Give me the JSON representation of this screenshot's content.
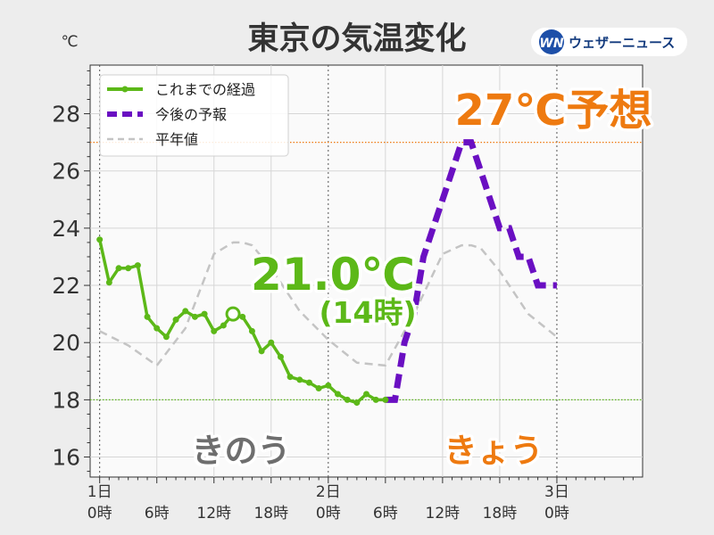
{
  "title": "東京の気温変化",
  "unit_label": "℃",
  "logo": {
    "text": "ウェザーニュース",
    "mark": "WN"
  },
  "legend": {
    "observed": "これまでの経過",
    "forecast": "今後の予報",
    "normal": "平年値"
  },
  "annotations": {
    "current_value": "21.0℃",
    "current_time": "(14時)",
    "forecast_high": "27℃予想",
    "yesterday": "きのう",
    "today": "きょう"
  },
  "colors": {
    "observed": "#5cb818",
    "forecast": "#6a0fc2",
    "normal": "#c4c4c4",
    "ref_high": "#ee7a10",
    "ref_low": "#5cb818",
    "background": "#ededed",
    "plot_bg": "#fafafa"
  },
  "chart_data": {
    "type": "line",
    "title": "東京の気温変化",
    "ylabel": "℃",
    "xlabel": "",
    "ylim": [
      15.3,
      29.7
    ],
    "xlim": [
      -1,
      57
    ],
    "y_ticks": [
      16,
      18,
      20,
      22,
      24,
      26,
      28
    ],
    "x_ticks": [
      {
        "x": 0,
        "label": "1日\n0時"
      },
      {
        "x": 6,
        "label": "6時"
      },
      {
        "x": 12,
        "label": "12時"
      },
      {
        "x": 18,
        "label": "18時"
      },
      {
        "x": 24,
        "label": "2日\n0時"
      },
      {
        "x": 30,
        "label": "6時"
      },
      {
        "x": 36,
        "label": "12時"
      },
      {
        "x": 42,
        "label": "18時"
      },
      {
        "x": 48,
        "label": "3日\n0時"
      }
    ],
    "grid": true,
    "legend_position": "top-left",
    "reference_lines": [
      {
        "y": 27,
        "color": "orange",
        "style": "dotted"
      },
      {
        "y": 18,
        "color": "green",
        "style": "dotted"
      }
    ],
    "series": [
      {
        "name": "これまでの経過",
        "style": "solid-markers",
        "x": [
          0,
          1,
          2,
          3,
          4,
          5,
          6,
          7,
          8,
          9,
          10,
          11,
          12,
          13,
          14,
          15,
          16,
          17,
          18,
          19,
          20,
          21,
          22,
          23,
          24,
          25,
          26,
          27,
          28,
          29,
          30
        ],
        "y": [
          23.6,
          22.1,
          22.6,
          22.6,
          22.7,
          20.9,
          20.5,
          20.2,
          20.8,
          21.1,
          20.9,
          21.0,
          20.4,
          20.6,
          21.0,
          20.9,
          20.4,
          19.7,
          20.0,
          19.5,
          18.8,
          18.7,
          18.6,
          18.4,
          18.5,
          18.2,
          18.0,
          17.9,
          18.2,
          18.0,
          18.0
        ]
      },
      {
        "name": "今後の予報",
        "style": "dashed",
        "x": [
          30,
          31,
          32,
          33,
          34,
          35,
          36,
          37,
          38,
          39,
          40,
          41,
          42,
          43,
          44,
          45,
          46,
          47,
          48
        ],
        "y": [
          18.0,
          18.0,
          20.0,
          21.0,
          23.0,
          24.0,
          25.0,
          26.0,
          27.0,
          27.0,
          26.0,
          25.0,
          24.0,
          24.0,
          23.0,
          23.0,
          22.0,
          22.0,
          22.0
        ]
      },
      {
        "name": "平年値",
        "style": "dashed",
        "x": [
          0,
          3,
          6,
          9,
          12,
          14,
          15,
          16,
          18,
          21,
          24,
          27,
          30,
          33,
          36,
          38,
          39,
          40,
          42,
          45,
          48
        ],
        "y": [
          20.4,
          19.9,
          19.2,
          20.5,
          23.1,
          23.5,
          23.5,
          23.4,
          22.6,
          21.1,
          20.1,
          19.3,
          19.2,
          21.0,
          23.1,
          23.4,
          23.4,
          23.3,
          22.5,
          21.0,
          20.2
        ]
      }
    ],
    "highlight_point": {
      "x": 14,
      "y": 21.0
    },
    "text_labels": {
      "current_value": "21.0℃",
      "current_time": "(14時)",
      "forecast_high": "27℃予想",
      "yesterday": "きのう",
      "today": "きょう"
    }
  }
}
